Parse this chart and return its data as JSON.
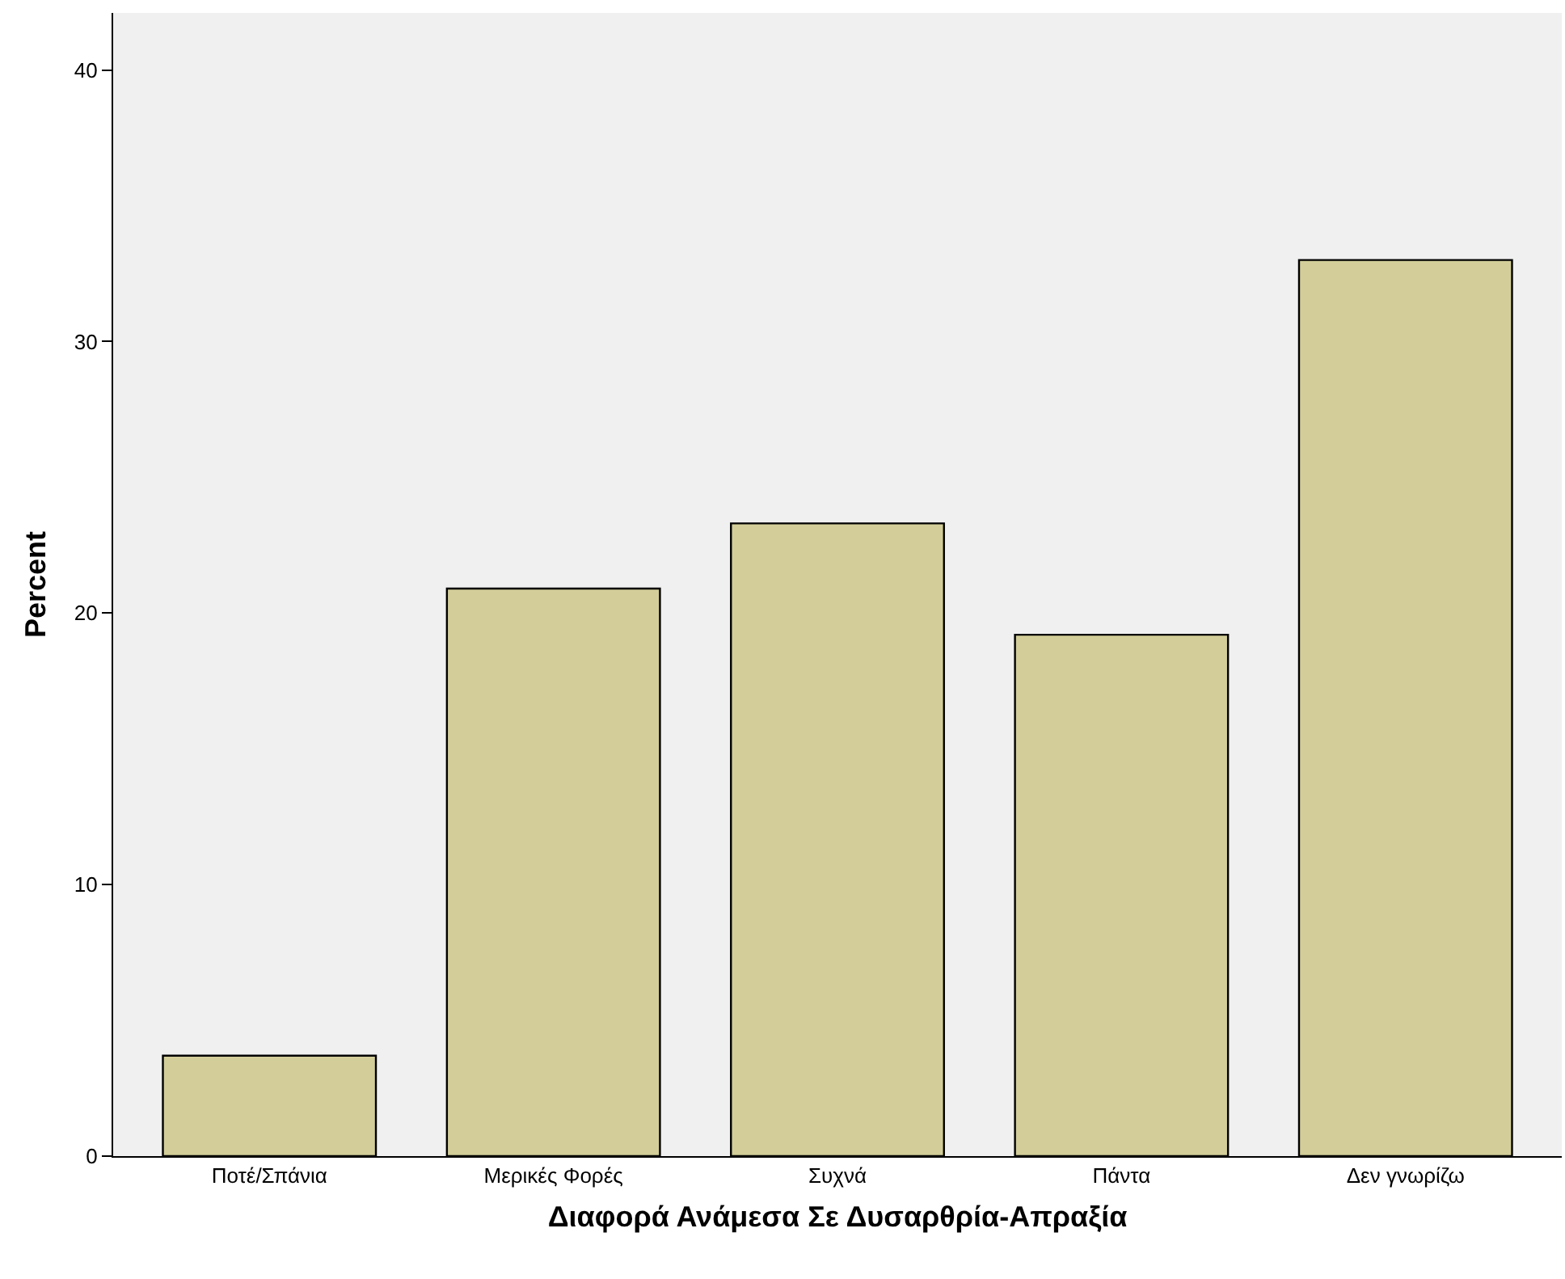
{
  "chart_data": {
    "type": "bar",
    "xlabel": "Διαφορά Ανάμεσα Σε Δυσαρθρία-Απραξία",
    "ylabel": "Percent",
    "categories": [
      "Ποτέ/Σπάνια",
      "Μερικές Φορές",
      "Συχνά",
      "Πάντα",
      "Δεν γνωρίζω"
    ],
    "values": [
      3.7,
      20.9,
      23.3,
      19.2,
      33.0
    ],
    "color": "#d3ce99",
    "ylim": [
      0,
      42.1
    ],
    "yticks": [
      0,
      10,
      20,
      30,
      40
    ],
    "grid": false
  }
}
